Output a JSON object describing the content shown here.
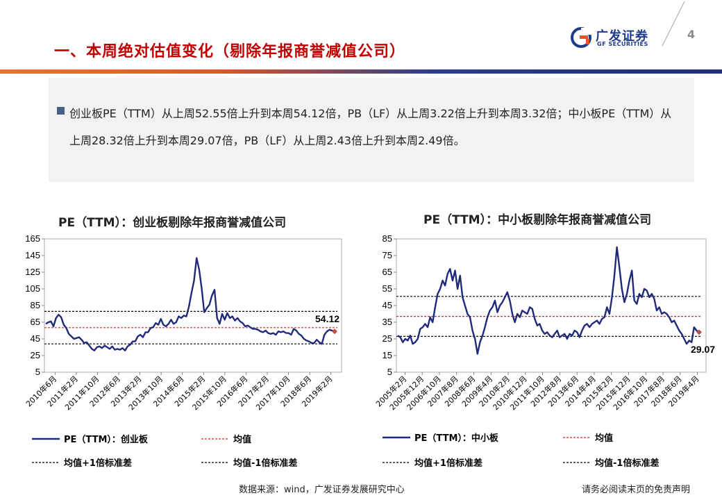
{
  "header": {
    "title": "一、本周绝对估值变化（剔除年报商誉减值公司）",
    "logo_cn": "广发证券",
    "logo_en": "GF SECURITIES",
    "page_number": "4"
  },
  "bullet": {
    "text": "创业板PE（TTM）从上周52.55倍上升到本周54.12倍，PB（LF）从上周3.22倍上升到本周3.32倍；中小板PE（TTM）从上周28.32倍上升到本周29.07倍，PB（LF）从上周2.43倍上升到本周2.49倍。"
  },
  "footer": {
    "source": "数据来源：wind，广发证券发展研究中心",
    "disclaimer": "请务必阅读末页的免责声明"
  },
  "colors": {
    "brand_red": "#c00000",
    "series_line": "#1f2a7a",
    "mean_line": "#e02020",
    "std_line": "#000000",
    "end_marker": "#c0504d"
  },
  "chart_data": [
    {
      "type": "line",
      "title": "PE（TTM）：创业板剔除年报商誉减值公司",
      "ylim": [
        5,
        165
      ],
      "yticks": [
        5,
        25,
        45,
        65,
        85,
        105,
        125,
        145,
        165
      ],
      "x_tick_labels": [
        "2010年6月",
        "2011年2月",
        "2011年10月",
        "2012年6月",
        "2013年2月",
        "2013年10月",
        "2014年6月",
        "2015年2月",
        "2015年10月",
        "2016年6月",
        "2017年2月",
        "2017年10月",
        "2018年6月",
        "2019年2月"
      ],
      "series": [
        {
          "name": "PE（TTM）：创业板",
          "values": [
            63,
            65,
            66,
            60,
            70,
            74,
            71,
            62,
            58,
            51,
            48,
            45,
            46,
            47,
            44,
            40,
            41,
            37,
            33,
            31,
            35,
            36,
            34,
            37,
            35,
            33,
            36,
            32,
            33,
            32,
            34,
            31,
            36,
            38,
            42,
            42,
            48,
            50,
            47,
            53,
            53,
            58,
            59,
            64,
            62,
            69,
            62,
            60,
            63,
            68,
            63,
            65,
            72,
            70,
            73,
            72,
            84,
            100,
            115,
            142,
            128,
            105,
            77,
            82,
            86,
            97,
            104,
            70,
            63,
            75,
            68,
            76,
            70,
            72,
            67,
            70,
            66,
            64,
            60,
            61,
            59,
            57,
            57,
            56,
            54,
            53,
            55,
            52,
            51,
            52,
            50,
            54,
            53,
            54,
            52,
            52,
            50,
            57,
            55,
            51,
            49,
            45,
            43,
            42,
            40,
            40,
            44,
            41,
            39,
            50,
            54,
            56,
            55,
            54
          ]
        }
      ],
      "mean": 58.5,
      "mean_plus_1std": 78,
      "mean_minus_1std": 39,
      "end_label": "54.12",
      "legend": [
        "PE（TTM）：创业板",
        "均值",
        "均值+1倍标准差",
        "均值-1倍标准差"
      ]
    },
    {
      "type": "line",
      "title": "PE（TTM）：中小板剔除年报商誉减值公司",
      "ylim": [
        5,
        85
      ],
      "yticks": [
        5,
        15,
        25,
        35,
        45,
        55,
        65,
        75,
        85
      ],
      "x_tick_labels": [
        "2005年2月",
        "2005年12月",
        "2006年10月",
        "2007年8月",
        "2008年6月",
        "2009年4月",
        "2010年2月",
        "2010年12月",
        "2011年10月",
        "2012年8月",
        "2013年6月",
        "2014年4月",
        "2015年2月",
        "2015年12月",
        "2016年10月",
        "2017年8月",
        "2018年6月",
        "2019年4月"
      ],
      "series": [
        {
          "name": "PE（TTM）：中小板",
          "values": [
            27,
            26,
            23,
            25,
            24,
            27,
            22,
            23,
            25,
            31,
            32,
            34,
            32,
            38,
            35,
            44,
            52,
            55,
            60,
            57,
            64,
            67,
            60,
            66,
            55,
            63,
            50,
            45,
            40,
            38,
            30,
            25,
            16,
            23,
            27,
            32,
            38,
            42,
            44,
            48,
            41,
            45,
            47,
            50,
            53,
            48,
            40,
            35,
            40,
            38,
            42,
            41,
            40,
            44,
            43,
            37,
            33,
            34,
            30,
            28,
            29,
            27,
            26,
            28,
            30,
            26,
            27,
            28,
            25,
            28,
            27,
            30,
            29,
            26,
            30,
            33,
            34,
            32,
            34,
            35,
            36,
            34,
            37,
            38,
            44,
            40,
            50,
            63,
            80,
            68,
            55,
            47,
            52,
            60,
            66,
            48,
            46,
            52,
            50,
            55,
            54,
            50,
            52,
            49,
            42,
            44,
            40,
            41,
            40,
            38,
            35,
            36,
            33,
            30,
            28,
            25,
            22,
            24,
            23,
            32,
            30,
            29
          ]
        }
      ],
      "mean": 38.5,
      "mean_plus_1std": 50.5,
      "mean_minus_1std": 26.5,
      "end_label": "29.07",
      "legend": [
        "PE（TTM）：中小板",
        "均值",
        "均值+1倍标准差",
        "均值-1倍标准差"
      ]
    }
  ]
}
